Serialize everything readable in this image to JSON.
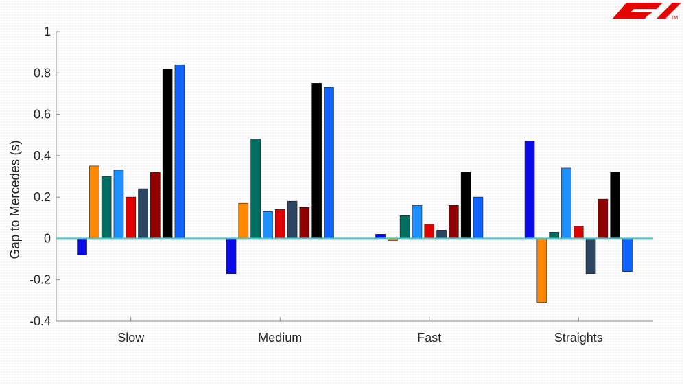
{
  "logo": {
    "name": "F1",
    "color": "#e10600",
    "trademark": "TM"
  },
  "chart_data": {
    "type": "bar",
    "title": "",
    "xlabel": "",
    "ylabel": "Gap to Mercedes (s)",
    "ylim": [
      -0.4,
      1
    ],
    "yticks": [
      -0.4,
      -0.2,
      0,
      0.2,
      0.4,
      0.6,
      0.8,
      1
    ],
    "ytick_labels": [
      "-0.4",
      "-0.2",
      "0",
      "0.2",
      "0.4",
      "0.6",
      "0.8",
      "1"
    ],
    "categories": [
      "Slow",
      "Medium",
      "Fast",
      "Straights"
    ],
    "grid": false,
    "legend": "none",
    "zero_line_color": "#40c8c8",
    "series": [
      {
        "color": "#0a0ae6",
        "values": [
          -0.08,
          -0.17,
          0.02,
          0.47
        ]
      },
      {
        "color": "#ff8700",
        "values": [
          0.35,
          0.17,
          -0.01,
          -0.31
        ]
      },
      {
        "color": "#006f62",
        "values": [
          0.3,
          0.48,
          0.11,
          0.03
        ]
      },
      {
        "color": "#1e90ff",
        "values": [
          0.33,
          0.13,
          0.16,
          0.34
        ]
      },
      {
        "color": "#dc0000",
        "values": [
          0.2,
          0.14,
          0.07,
          0.06
        ]
      },
      {
        "color": "#2b4562",
        "values": [
          0.24,
          0.18,
          0.04,
          -0.17
        ]
      },
      {
        "color": "#900000",
        "values": [
          0.32,
          0.15,
          0.16,
          0.19
        ]
      },
      {
        "color": "#000000",
        "values": [
          0.82,
          0.75,
          0.32,
          0.32
        ]
      },
      {
        "color": "#0f62fe",
        "values": [
          0.84,
          0.73,
          0.2,
          -0.16
        ]
      }
    ]
  }
}
